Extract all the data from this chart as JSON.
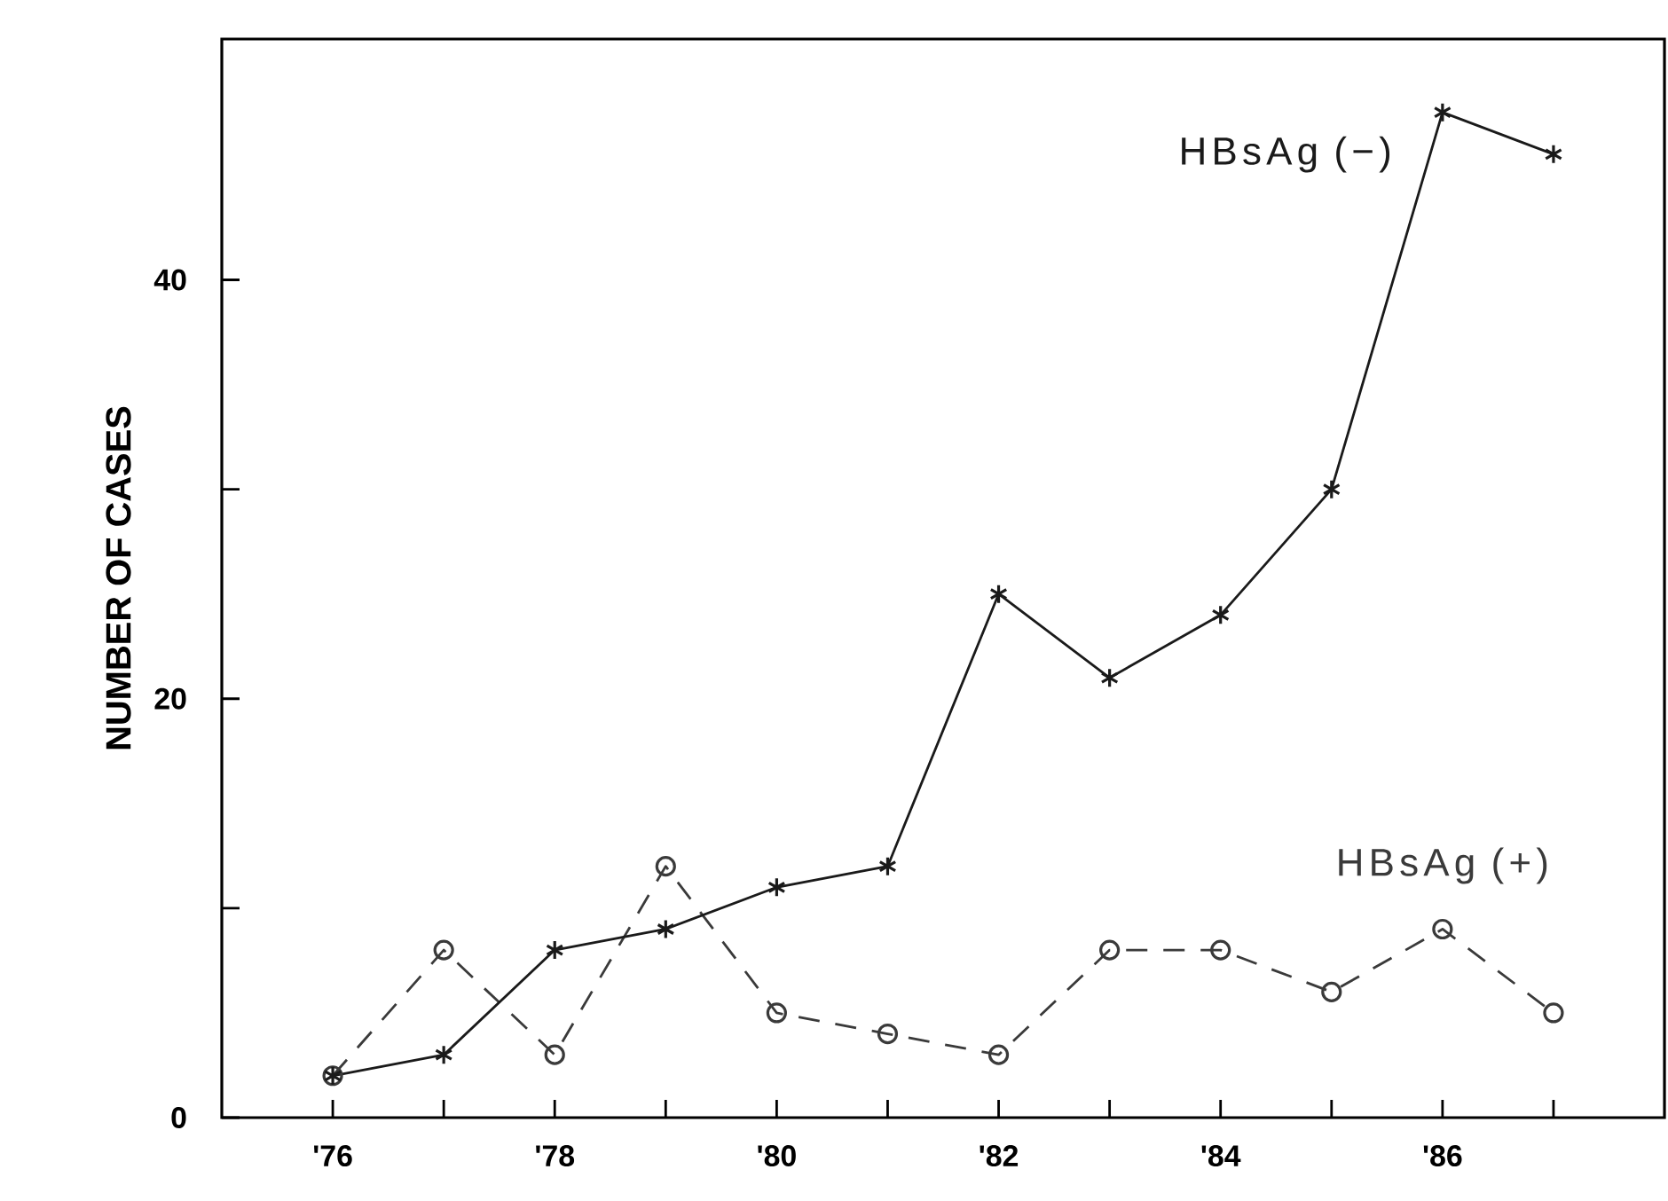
{
  "chart_data": {
    "type": "line",
    "ylabel": "NUMBER OF CASES",
    "x": [
      1976,
      1977,
      1978,
      1979,
      1980,
      1981,
      1982,
      1983,
      1984,
      1985,
      1986,
      1987
    ],
    "series": [
      {
        "name": "HBsAg  (−)",
        "color": "#1a1a1a",
        "marker": "cross",
        "line_style": "solid",
        "values": [
          2,
          3,
          8,
          9,
          11,
          12,
          25,
          21,
          24,
          30,
          48,
          46
        ]
      },
      {
        "name": "HBsAg  (+)",
        "color": "#3a3a3a",
        "marker": "circle",
        "line_style": "dashed",
        "values": [
          2,
          8,
          3,
          12,
          5,
          4,
          3,
          8,
          8,
          6,
          9,
          5
        ]
      }
    ],
    "xlim": [
      1975,
      1988
    ],
    "ylim": [
      0,
      51.5
    ],
    "xticks": [
      {
        "value": 1976,
        "label": "'76"
      },
      {
        "value": 1977,
        "label": null
      },
      {
        "value": 1978,
        "label": "'78"
      },
      {
        "value": 1979,
        "label": null
      },
      {
        "value": 1980,
        "label": "'80"
      },
      {
        "value": 1981,
        "label": null
      },
      {
        "value": 1982,
        "label": "'82"
      },
      {
        "value": 1983,
        "label": null
      },
      {
        "value": 1984,
        "label": "'84"
      },
      {
        "value": 1985,
        "label": null
      },
      {
        "value": 1986,
        "label": "'86"
      },
      {
        "value": 1987,
        "label": null
      }
    ],
    "yticks": [
      0,
      {
        "value": 10,
        "label": null
      },
      20,
      {
        "value": 30,
        "label": null
      },
      40
    ]
  }
}
